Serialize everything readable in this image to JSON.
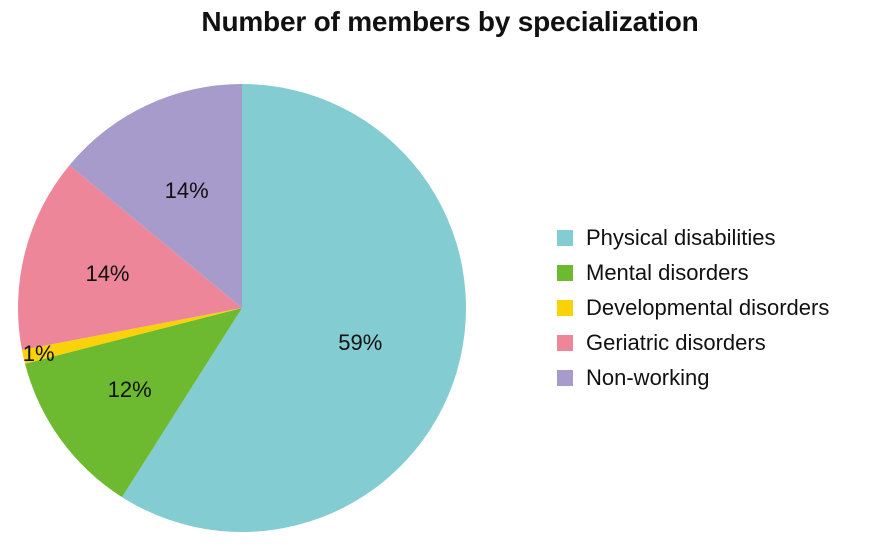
{
  "chart_data": {
    "type": "pie",
    "title": "Number of members by specialization",
    "slices": [
      {
        "label": "Physical disabilities",
        "value": 59,
        "display": "59%",
        "color": "#83ccd2"
      },
      {
        "label": "Mental disorders",
        "value": 12,
        "display": "12%",
        "color": "#6db92f"
      },
      {
        "label": "Developmental disorders",
        "value": 1,
        "display": "1%",
        "color": "#fad20a"
      },
      {
        "label": "Geriatric disorders",
        "value": 14,
        "display": "14%",
        "color": "#ee8699"
      },
      {
        "label": "Non-working",
        "value": 14,
        "display": "14%",
        "color": "#a69bcb"
      }
    ],
    "start_angle": "12 o'clock",
    "direction": "clockwise",
    "legend_position": "right"
  }
}
